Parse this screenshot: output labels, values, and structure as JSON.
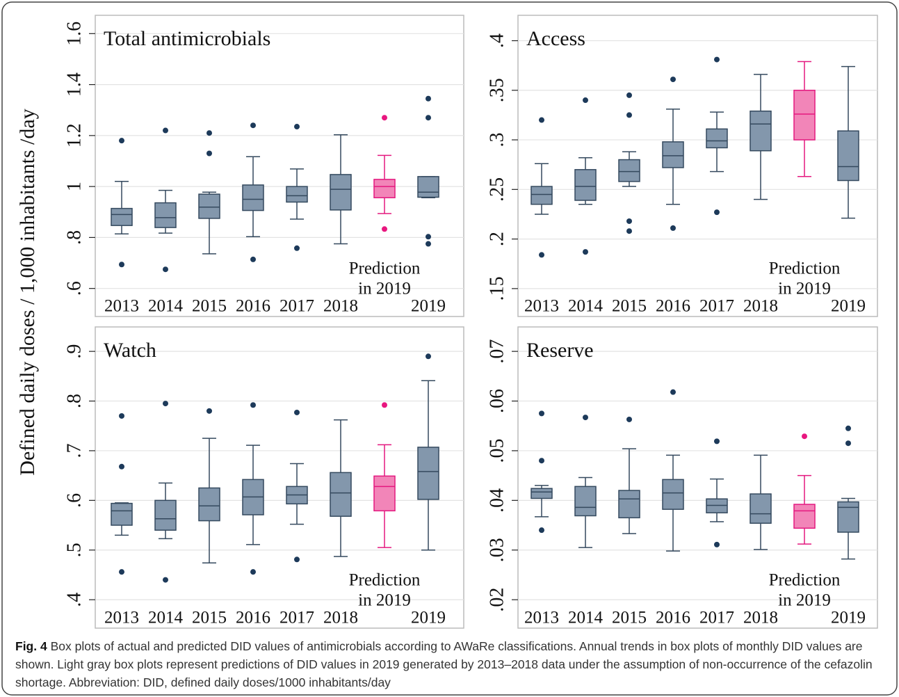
{
  "ylabel": "Defined daily doses / 1,000 inhabitants /day",
  "caption": {
    "label": "Fig. 4",
    "text": "Box plots of actual and predicted DID values of antimicrobials according to AWaRe classifications. Annual trends in box plots of monthly DID values are shown. Light gray box plots represent predictions of DID values in 2019 generated by 2013–2018 data under the assumption of non-occurrence of the cefazolin shortage. Abbreviation: DID, defined daily doses/1000 inhabitants/day"
  },
  "chart_data": [
    {
      "type": "box",
      "title": "Total antimicrobials",
      "categories": [
        "2013",
        "2014",
        "2015",
        "2016",
        "2017",
        "2018",
        null,
        "2019"
      ],
      "annotation": [
        "Prediction",
        "in 2019"
      ],
      "boxes": [
        {
          "min": 0.814,
          "q1": 0.847,
          "median": 0.89,
          "q3": 0.914,
          "max": 1.02,
          "outliers": [
            1.18,
            0.694
          ]
        },
        {
          "min": 0.817,
          "q1": 0.839,
          "median": 0.878,
          "q3": 0.936,
          "max": 0.985,
          "outliers": [
            1.22,
            0.675
          ]
        },
        {
          "min": 0.736,
          "q1": 0.875,
          "median": 0.919,
          "q3": 0.97,
          "max": 0.978,
          "outliers": [
            1.21,
            1.13
          ]
        },
        {
          "min": 0.803,
          "q1": 0.906,
          "median": 0.95,
          "q3": 1.006,
          "max": 1.117,
          "outliers": [
            1.24,
            0.714
          ]
        },
        {
          "min": 0.872,
          "q1": 0.939,
          "median": 0.964,
          "q3": 1.0,
          "max": 1.069,
          "outliers": [
            1.235,
            0.758
          ]
        },
        {
          "min": 0.775,
          "q1": 0.908,
          "median": 0.989,
          "q3": 1.047,
          "max": 1.203,
          "outliers": []
        },
        {
          "min": 0.894,
          "q1": 0.956,
          "median": 1.0,
          "q3": 1.028,
          "max": 1.122,
          "outliers": [
            1.27,
            0.833
          ]
        },
        {
          "min": 0.956,
          "q1": 0.958,
          "median": 0.978,
          "q3": 1.039,
          "max": 1.039,
          "outliers": [
            1.345,
            1.27,
            0.803,
            0.775
          ]
        }
      ],
      "colors": [
        "#8397ac",
        "#8397ac",
        "#8397ac",
        "#8397ac",
        "#8397ac",
        "#8397ac",
        "#f285b8",
        "#8397ac"
      ],
      "edge_colors": [
        "#34495e",
        "#34495e",
        "#34495e",
        "#34495e",
        "#34495e",
        "#34495e",
        "#e4187f",
        "#34495e"
      ],
      "point_colors": [
        "#1d3a5a",
        "#1d3a5a",
        "#1d3a5a",
        "#1d3a5a",
        "#1d3a5a",
        "#1d3a5a",
        "#e8177f",
        "#1d3a5a"
      ],
      "ylim": [
        0.58,
        1.65
      ],
      "yticks": [
        {
          "value": 0.6,
          "label": ".6"
        },
        {
          "value": 0.8,
          "label": ".8"
        },
        1,
        1.2,
        1.4,
        1.6
      ],
      "grid": true
    },
    {
      "type": "box",
      "title": "Access",
      "categories": [
        "2013",
        "2014",
        "2015",
        "2016",
        "2017",
        "2018",
        null,
        "2019"
      ],
      "annotation": [
        "Prediction",
        "in 2019"
      ],
      "boxes": [
        {
          "min": 0.225,
          "q1": 0.235,
          "median": 0.245,
          "q3": 0.253,
          "max": 0.276,
          "outliers": [
            0.32,
            0.184
          ]
        },
        {
          "min": 0.235,
          "q1": 0.239,
          "median": 0.253,
          "q3": 0.27,
          "max": 0.282,
          "outliers": [
            0.34,
            0.187
          ]
        },
        {
          "min": 0.253,
          "q1": 0.258,
          "median": 0.268,
          "q3": 0.28,
          "max": 0.288,
          "outliers": [
            0.345,
            0.325,
            0.218,
            0.208
          ]
        },
        {
          "min": 0.235,
          "q1": 0.272,
          "median": 0.284,
          "q3": 0.298,
          "max": 0.331,
          "outliers": [
            0.361,
            0.211
          ]
        },
        {
          "min": 0.268,
          "q1": 0.292,
          "median": 0.299,
          "q3": 0.311,
          "max": 0.328,
          "outliers": [
            0.381,
            0.227
          ]
        },
        {
          "min": 0.24,
          "q1": 0.289,
          "median": 0.316,
          "q3": 0.329,
          "max": 0.366,
          "outliers": []
        },
        {
          "min": 0.263,
          "q1": 0.3,
          "median": 0.326,
          "q3": 0.35,
          "max": 0.379,
          "outliers": []
        },
        {
          "min": 0.221,
          "q1": 0.259,
          "median": 0.273,
          "q3": 0.309,
          "max": 0.374,
          "outliers": []
        }
      ],
      "colors": [
        "#8397ac",
        "#8397ac",
        "#8397ac",
        "#8397ac",
        "#8397ac",
        "#8397ac",
        "#f285b8",
        "#8397ac"
      ],
      "edge_colors": [
        "#34495e",
        "#34495e",
        "#34495e",
        "#34495e",
        "#34495e",
        "#34495e",
        "#e4187f",
        "#34495e"
      ],
      "point_colors": [
        "#1d3a5a",
        "#1d3a5a",
        "#1d3a5a",
        "#1d3a5a",
        "#1d3a5a",
        "#1d3a5a",
        "#e8177f",
        "#1d3a5a"
      ],
      "ylim": [
        0.145,
        0.42
      ],
      "yticks": [
        {
          "value": 0.15,
          "label": ".15"
        },
        {
          "value": 0.2,
          "label": ".2"
        },
        {
          "value": 0.25,
          "label": ".25"
        },
        {
          "value": 0.3,
          "label": ".3"
        },
        {
          "value": 0.35,
          "label": ".35"
        },
        {
          "value": 0.4,
          "label": ".4"
        }
      ],
      "grid": true
    },
    {
      "type": "box",
      "title": "Watch",
      "categories": [
        "2013",
        "2014",
        "2015",
        "2016",
        "2017",
        "2018",
        null,
        "2019"
      ],
      "annotation": [
        "Prediction",
        "in 2019"
      ],
      "boxes": [
        {
          "min": 0.53,
          "q1": 0.55,
          "median": 0.579,
          "q3": 0.594,
          "max": 0.595,
          "outliers": [
            0.77,
            0.668,
            0.456
          ]
        },
        {
          "min": 0.523,
          "q1": 0.54,
          "median": 0.563,
          "q3": 0.6,
          "max": 0.635,
          "outliers": [
            0.795,
            0.44
          ]
        },
        {
          "min": 0.474,
          "q1": 0.559,
          "median": 0.589,
          "q3": 0.625,
          "max": 0.725,
          "outliers": [
            0.78
          ]
        },
        {
          "min": 0.511,
          "q1": 0.571,
          "median": 0.607,
          "q3": 0.642,
          "max": 0.711,
          "outliers": [
            0.792,
            0.456
          ]
        },
        {
          "min": 0.552,
          "q1": 0.593,
          "median": 0.611,
          "q3": 0.628,
          "max": 0.674,
          "outliers": [
            0.777,
            0.481
          ]
        },
        {
          "min": 0.487,
          "q1": 0.568,
          "median": 0.615,
          "q3": 0.656,
          "max": 0.762,
          "outliers": []
        },
        {
          "min": 0.505,
          "q1": 0.579,
          "median": 0.628,
          "q3": 0.649,
          "max": 0.712,
          "outliers": [
            0.792
          ]
        },
        {
          "min": 0.5,
          "q1": 0.602,
          "median": 0.658,
          "q3": 0.707,
          "max": 0.841,
          "outliers": [
            0.89
          ]
        }
      ],
      "colors": [
        "#8397ac",
        "#8397ac",
        "#8397ac",
        "#8397ac",
        "#8397ac",
        "#8397ac",
        "#f285b8",
        "#8397ac"
      ],
      "edge_colors": [
        "#34495e",
        "#34495e",
        "#34495e",
        "#34495e",
        "#34495e",
        "#34495e",
        "#e4187f",
        "#34495e"
      ],
      "point_colors": [
        "#1d3a5a",
        "#1d3a5a",
        "#1d3a5a",
        "#1d3a5a",
        "#1d3a5a",
        "#1d3a5a",
        "#e8177f",
        "#1d3a5a"
      ],
      "ylim": [
        0.389,
        0.938
      ],
      "yticks": [
        {
          "value": 0.4,
          "label": ".4"
        },
        {
          "value": 0.5,
          "label": ".5"
        },
        {
          "value": 0.6,
          "label": ".6"
        },
        {
          "value": 0.7,
          "label": ".7"
        },
        {
          "value": 0.8,
          "label": ".8"
        },
        {
          "value": 0.9,
          "label": ".9"
        }
      ],
      "grid": true
    },
    {
      "type": "box",
      "title": "Reserve",
      "categories": [
        "2013",
        "2014",
        "2015",
        "2016",
        "2017",
        "2018",
        null,
        "2019"
      ],
      "annotation": [
        "Prediction",
        "in 2019"
      ],
      "boxes": [
        {
          "min": 0.0367,
          "q1": 0.0404,
          "median": 0.0417,
          "q3": 0.0424,
          "max": 0.043,
          "outliers": [
            0.0575,
            0.048,
            0.034
          ]
        },
        {
          "min": 0.0305,
          "q1": 0.0369,
          "median": 0.0386,
          "q3": 0.0428,
          "max": 0.0446,
          "outliers": [
            0.0567
          ]
        },
        {
          "min": 0.0333,
          "q1": 0.0365,
          "median": 0.0403,
          "q3": 0.042,
          "max": 0.0504,
          "outliers": [
            0.0563
          ]
        },
        {
          "min": 0.0298,
          "q1": 0.0382,
          "median": 0.0415,
          "q3": 0.0442,
          "max": 0.0491,
          "outliers": [
            0.0618
          ]
        },
        {
          "min": 0.0357,
          "q1": 0.0375,
          "median": 0.039,
          "q3": 0.0403,
          "max": 0.0443,
          "outliers": [
            0.0519,
            0.0311
          ]
        },
        {
          "min": 0.0301,
          "q1": 0.0354,
          "median": 0.0373,
          "q3": 0.0413,
          "max": 0.0491,
          "outliers": []
        },
        {
          "min": 0.0312,
          "q1": 0.0344,
          "median": 0.0379,
          "q3": 0.0392,
          "max": 0.045,
          "outliers": [
            0.0529
          ]
        },
        {
          "min": 0.0282,
          "q1": 0.0336,
          "median": 0.0386,
          "q3": 0.0397,
          "max": 0.0404,
          "outliers": [
            0.0545,
            0.0515
          ]
        }
      ],
      "colors": [
        "#8397ac",
        "#8397ac",
        "#8397ac",
        "#8397ac",
        "#8397ac",
        "#8397ac",
        "#f285b8",
        "#8397ac"
      ],
      "edge_colors": [
        "#34495e",
        "#34495e",
        "#34495e",
        "#34495e",
        "#34495e",
        "#34495e",
        "#e4187f",
        "#34495e"
      ],
      "point_colors": [
        "#1d3a5a",
        "#1d3a5a",
        "#1d3a5a",
        "#1d3a5a",
        "#1d3a5a",
        "#1d3a5a",
        "#e8177f",
        "#1d3a5a"
      ],
      "ylim": [
        0.0189,
        0.0738
      ],
      "yticks": [
        {
          "value": 0.02,
          "label": ".02"
        },
        {
          "value": 0.03,
          "label": ".03"
        },
        {
          "value": 0.04,
          "label": ".04"
        },
        {
          "value": 0.05,
          "label": ".05"
        },
        {
          "value": 0.06,
          "label": ".06"
        },
        {
          "value": 0.07,
          "label": ".07"
        }
      ],
      "grid": true
    }
  ]
}
